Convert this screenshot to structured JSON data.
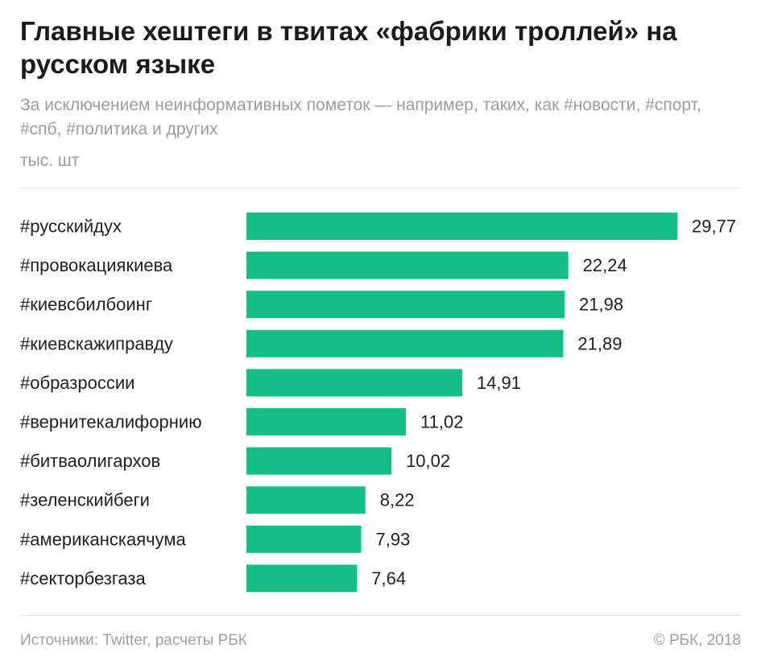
{
  "header": {
    "title": "Главные хештеги в твитах «фабрики троллей» на русском языке",
    "subtitle": "За исключением неинформативных пометок — например, таких, как #новости, #спорт, #спб, #политика и других",
    "units": "тыс. шт"
  },
  "footer": {
    "source": "Источники: Twitter, расчеты РБК",
    "copyright": "© РБК, 2018"
  },
  "colors": {
    "bar": "#14bd86",
    "label": "#1f1f1f"
  },
  "chart_data": {
    "type": "bar",
    "orientation": "horizontal",
    "categories": [
      "#русскийдух",
      "#провокациякиева",
      "#киевсбилбоинг",
      "#киевскажиправду",
      "#образроссии",
      "#вернитекалифорнию",
      "#битваолигархов",
      "#зеленскийбеги",
      "#американскаячума",
      "#секторбезгаза"
    ],
    "values": [
      29.77,
      22.24,
      21.98,
      21.89,
      14.91,
      11.02,
      10.02,
      8.22,
      7.93,
      7.64
    ],
    "value_labels": [
      "29,77",
      "22,24",
      "21,98",
      "21,89",
      "14,91",
      "11,02",
      "10,02",
      "8,22",
      "7,93",
      "7,64"
    ],
    "title": "Главные хештеги в твитах «фабрики троллей» на русском языке",
    "xlabel": "",
    "ylabel": "тыс. шт",
    "xlim": [
      0,
      29.77
    ],
    "grid": false,
    "legend": "none"
  }
}
